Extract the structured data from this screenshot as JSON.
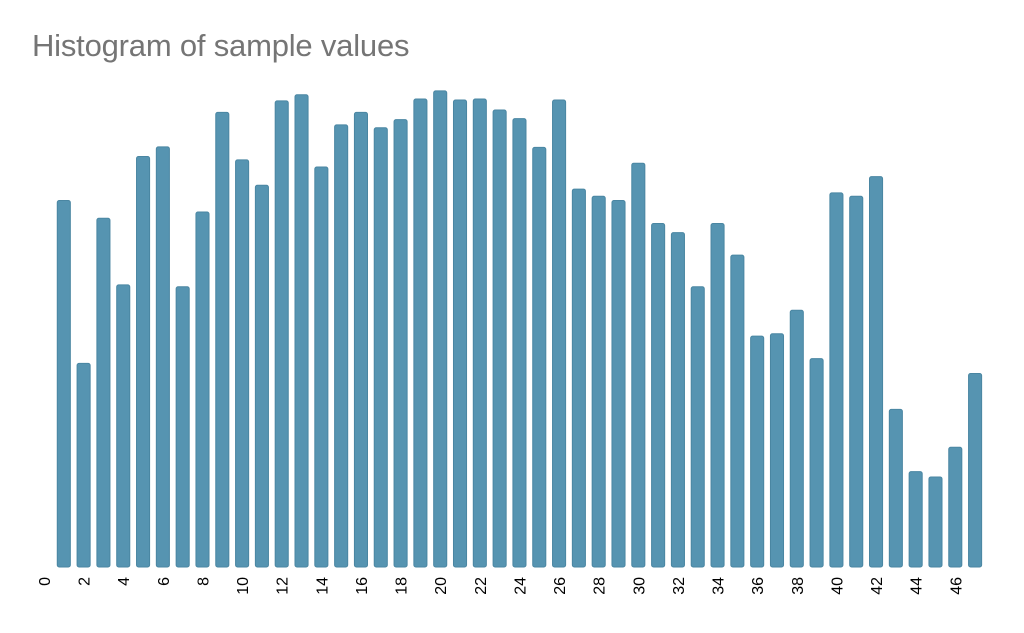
{
  "chart_data": {
    "type": "bar",
    "title": "Histogram of sample values",
    "xlabel": "",
    "ylabel": "",
    "categories": [
      1,
      2,
      3,
      4,
      5,
      6,
      7,
      8,
      9,
      10,
      11,
      12,
      13,
      14,
      15,
      16,
      17,
      18,
      19,
      20,
      21,
      22,
      23,
      24,
      25,
      26,
      27,
      28,
      29,
      30,
      31,
      32,
      33,
      34,
      35,
      36,
      37,
      38,
      39,
      40,
      41,
      42,
      43,
      44,
      45,
      46,
      47
    ],
    "values": [
      76.5,
      42.5,
      72.8,
      58.9,
      85.7,
      87.7,
      58.5,
      74.1,
      94.9,
      85.0,
      79.7,
      97.3,
      98.6,
      83.5,
      92.3,
      94.9,
      91.7,
      93.4,
      97.7,
      99.4,
      97.5,
      97.7,
      95.4,
      93.6,
      87.6,
      97.5,
      78.9,
      77.4,
      76.5,
      84.3,
      71.7,
      69.8,
      58.5,
      71.7,
      65.1,
      48.2,
      48.7,
      53.6,
      43.5,
      78.1,
      77.4,
      81.5,
      32.9,
      19.9,
      18.8,
      25.0,
      40.4
    ],
    "xlim": [
      0,
      47.5
    ],
    "ylim": [
      0,
      100
    ],
    "x_ticks": [
      0,
      2,
      4,
      6,
      8,
      10,
      12,
      14,
      16,
      18,
      20,
      22,
      24,
      26,
      28,
      30,
      32,
      34,
      36,
      38,
      40,
      42,
      44,
      46
    ],
    "x_tick_labels": [
      "0",
      "2",
      "4",
      "6",
      "8",
      "10",
      "12",
      "14",
      "16",
      "18",
      "20",
      "22",
      "24",
      "26",
      "28",
      "30",
      "32",
      "34",
      "36",
      "38",
      "40",
      "42",
      "44",
      "46"
    ],
    "bar_color": "#5694b1",
    "bar_edge_color": "#4a86a2",
    "grid": false,
    "legend": "none"
  }
}
